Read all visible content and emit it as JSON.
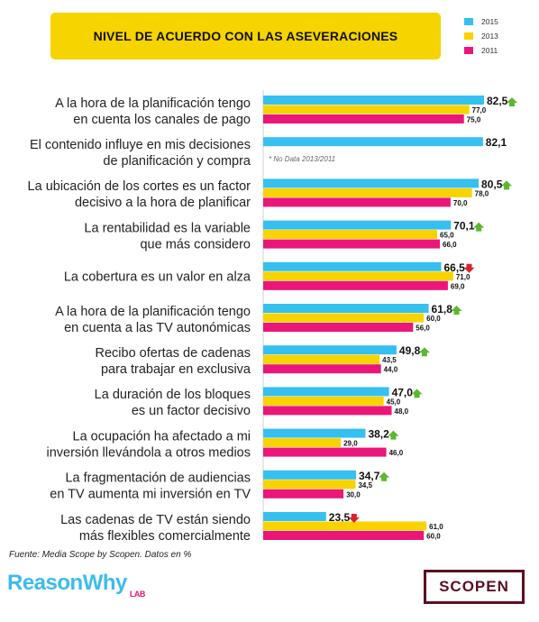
{
  "header": {
    "title": "NIVEL DE ACUERDO CON LAS ASEVERACIONES"
  },
  "chart_data": {
    "type": "bar",
    "orientation": "horizontal",
    "title": "NIVEL DE ACUERDO CON LAS ASEVERACIONES",
    "legend_position": "top-right",
    "xlim": [
      0,
      85
    ],
    "categories": [
      {
        "line1": "A la hora de la planificación tengo",
        "line2": "en cuenta los canales de pago"
      },
      {
        "line1": "El contenido influye en mis decisiones",
        "line2": "de planificación y compra"
      },
      {
        "line1": "La ubicación de los cortes es un factor",
        "line2": "decisivo a la hora de planificar"
      },
      {
        "line1": "La rentabilidad es la variable",
        "line2": "que más considero"
      },
      {
        "line1": "La cobertura es un valor en alza",
        "line2": ""
      },
      {
        "line1": "A la hora de la planificación tengo",
        "line2": "en cuenta a las TV autonómicas"
      },
      {
        "line1": "Recibo ofertas de cadenas",
        "line2": "para trabajar en exclusiva"
      },
      {
        "line1": "La duración de los bloques",
        "line2": "es un factor decisivo"
      },
      {
        "line1": "La ocupación ha afectado a mi",
        "line2": "inversión llevándola a otros medios"
      },
      {
        "line1": "La fragmentación de audiencias",
        "line2": "en TV aumenta mi inversión en TV"
      },
      {
        "line1": "Las cadenas de TV están siendo",
        "line2": "más flexibles comercialmente"
      }
    ],
    "series": [
      {
        "name": "2015",
        "color": "#35c0ef",
        "values": [
          82.5,
          82.1,
          80.5,
          70.1,
          66.5,
          61.8,
          49.8,
          47.0,
          38.2,
          34.7,
          23.5
        ],
        "labels": [
          "82,5",
          "82,1",
          "80,5",
          "70,1",
          "66,5",
          "61,8",
          "49,8",
          "47,0",
          "38,2",
          "34,7",
          "23,5"
        ]
      },
      {
        "name": "2013",
        "color": "#f8d300",
        "values": [
          77.0,
          null,
          78.0,
          65.0,
          71.0,
          60.0,
          43.5,
          45.0,
          29.0,
          34.5,
          61.0
        ],
        "labels": [
          "77,0",
          "",
          "78,0",
          "65,0",
          "71,0",
          "60,0",
          "43,5",
          "45,0",
          "29,0",
          "34,5",
          "61,0"
        ]
      },
      {
        "name": "2011",
        "color": "#ea1679",
        "values": [
          75.0,
          null,
          70.0,
          66.0,
          69.0,
          56.0,
          44.0,
          48.0,
          46.0,
          30.0,
          60.0
        ],
        "labels": [
          "75,0",
          "",
          "70,0",
          "66,0",
          "69,0",
          "56,0",
          "44,0",
          "48,0",
          "46,0",
          "30,0",
          "60,0"
        ]
      }
    ],
    "trend": [
      "up",
      null,
      "up",
      "up",
      "down",
      "up",
      "up",
      "up",
      "up",
      "up",
      "down"
    ],
    "trend_colors": {
      "up": "#5cb82e",
      "down": "#d9232e"
    },
    "annotations": [
      {
        "category_index": 1,
        "text": "* No Data 2013/2011"
      }
    ]
  },
  "footer": {
    "source": "Fuente: Media Scope by Scopen. Datos en %",
    "logo_left": "ReasonWhy",
    "logo_left_sub": "LAB",
    "logo_right": "SCOPEN"
  }
}
